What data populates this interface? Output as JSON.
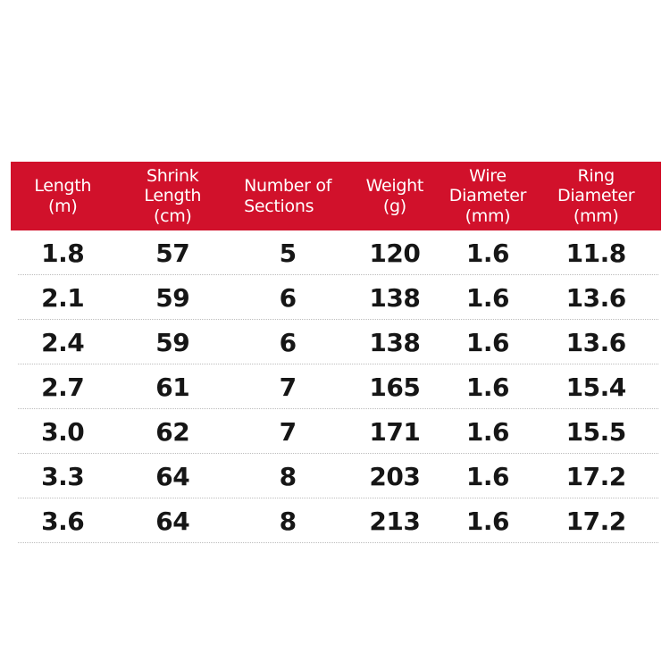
{
  "colors": {
    "header_background": "#d1112b",
    "header_text": "#ffffff",
    "body_text": "#161616",
    "row_separator": "#bdbdbd",
    "page_background": "#ffffff"
  },
  "table": {
    "columns": [
      {
        "id": "length",
        "label": "Length\n(m)"
      },
      {
        "id": "shrink_length",
        "label": "Shrink\nLength\n(cm)"
      },
      {
        "id": "number_of_sections",
        "label": "Number of\nSections"
      },
      {
        "id": "weight",
        "label": "Weight\n(g)"
      },
      {
        "id": "wire_diameter",
        "label": "Wire\nDiameter\n(mm)"
      },
      {
        "id": "ring_diameter",
        "label": "Ring\nDiameter\n(mm)"
      }
    ]
  },
  "chart_data": {
    "type": "table",
    "columns": [
      "Length (m)",
      "Shrink Length (cm)",
      "Number of Sections",
      "Weight (g)",
      "Wire Diameter (mm)",
      "Ring Diameter (mm)"
    ],
    "rows": [
      [
        "1.8",
        "57",
        "5",
        "120",
        "1.6",
        "11.8"
      ],
      [
        "2.1",
        "59",
        "6",
        "138",
        "1.6",
        "13.6"
      ],
      [
        "2.4",
        "59",
        "6",
        "138",
        "1.6",
        "13.6"
      ],
      [
        "2.7",
        "61",
        "7",
        "165",
        "1.6",
        "15.4"
      ],
      [
        "3.0",
        "62",
        "7",
        "171",
        "1.6",
        "15.5"
      ],
      [
        "3.3",
        "64",
        "8",
        "203",
        "1.6",
        "17.2"
      ],
      [
        "3.6",
        "64",
        "8",
        "213",
        "1.6",
        "17.2"
      ]
    ]
  }
}
